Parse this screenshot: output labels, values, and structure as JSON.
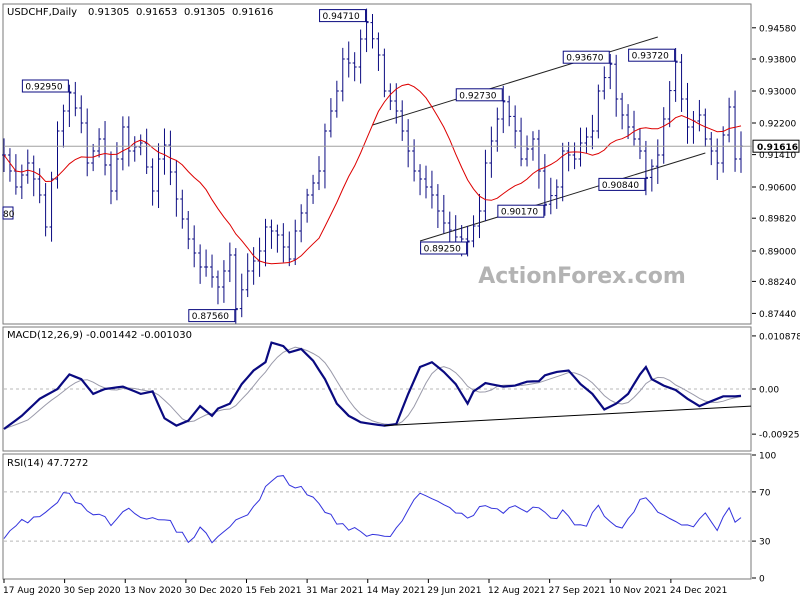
{
  "chart_data": [
    {
      "type": "bar",
      "style": "OHLC bars",
      "title": "USDCHF,Daily",
      "ohlc_header": [
        "0.91305",
        "0.91653",
        "0.91305",
        "0.91616"
      ],
      "last_price_label": "0.91616",
      "y_axis": {
        "ticks": [
          0.9458,
          0.938,
          0.93,
          0.922,
          0.9141,
          0.906,
          0.8982,
          0.89,
          0.8824,
          0.8744
        ],
        "tick_labels": [
          "0.94580",
          "0.93800",
          "0.93000",
          "0.92200",
          "0.91410",
          "0.90600",
          "0.89820",
          "0.89000",
          "0.88240",
          "0.87440"
        ],
        "range": [
          0.872,
          0.9515
        ]
      },
      "x_axis": {
        "tick_labels": [
          "17 Aug 2020",
          "30 Sep 2020",
          "13 Nov 2020",
          "30 Dec 2020",
          "15 Feb 2021",
          "31 Mar 2021",
          "14 May 2021",
          "29 Jun 2021",
          "12 Aug 2021",
          "27 Sep 2021",
          "10 Nov 2021",
          "24 Dec 2021"
        ]
      },
      "swing_labels": [
        {
          "text": "0.92950",
          "value": 0.9295,
          "date": "Aug 2020"
        },
        {
          "text": "0.94710",
          "value": 0.9471,
          "date": "Mar 2021"
        },
        {
          "text": "0.87560",
          "value": 0.8756,
          "date": "Jan 2021"
        },
        {
          "text": "0.92730",
          "value": 0.9273,
          "date": "Jun 2021"
        },
        {
          "text": "0.89250",
          "value": 0.8925,
          "date": "May 2021"
        },
        {
          "text": "0.90170",
          "value": 0.9017,
          "date": "Aug 2021"
        },
        {
          "text": "0.93670",
          "value": 0.9367,
          "date": "Sep 2021"
        },
        {
          "text": "0.90840",
          "value": 0.9084,
          "date": "Oct 2021"
        },
        {
          "text": "0.93720",
          "value": 0.9372,
          "date": "Nov 2021"
        }
      ],
      "cut_label": "80",
      "path_points": [
        [
          0,
          0.914
        ],
        [
          2,
          0.906
        ],
        [
          4,
          0.912
        ],
        [
          6,
          0.904
        ],
        [
          7,
          0.896
        ],
        [
          9,
          0.92
        ],
        [
          10,
          0.925
        ],
        [
          11,
          0.9295
        ],
        [
          13,
          0.922
        ],
        [
          14,
          0.912
        ],
        [
          16,
          0.918
        ],
        [
          18,
          0.905
        ],
        [
          20,
          0.921
        ],
        [
          21,
          0.915
        ],
        [
          23,
          0.917
        ],
        [
          25,
          0.905
        ],
        [
          26,
          0.913
        ],
        [
          27,
          0.9165
        ],
        [
          29,
          0.903
        ],
        [
          31,
          0.893
        ],
        [
          33,
          0.886
        ],
        [
          34,
          0.886
        ],
        [
          36,
          0.881
        ],
        [
          38,
          0.889
        ],
        [
          39,
          0.8756
        ],
        [
          41,
          0.885
        ],
        [
          43,
          0.89
        ],
        [
          44,
          0.896
        ],
        [
          46,
          0.894
        ],
        [
          48,
          0.888
        ],
        [
          49,
          0.895
        ],
        [
          51,
          0.904
        ],
        [
          53,
          0.91
        ],
        [
          54,
          0.92
        ],
        [
          56,
          0.93
        ],
        [
          57,
          0.938
        ],
        [
          59,
          0.936
        ],
        [
          60,
          0.943
        ],
        [
          61,
          0.9471
        ],
        [
          63,
          0.939
        ],
        [
          64,
          0.93
        ],
        [
          66,
          0.925
        ],
        [
          68,
          0.915
        ],
        [
          69,
          0.91
        ],
        [
          71,
          0.906
        ],
        [
          72,
          0.904
        ],
        [
          73,
          0.9
        ],
        [
          74,
          0.897
        ],
        [
          76,
          0.8935
        ],
        [
          78,
          0.8925
        ],
        [
          80,
          0.9
        ],
        [
          81,
          0.912
        ],
        [
          83,
          0.923
        ],
        [
          84,
          0.9273
        ],
        [
          86,
          0.92
        ],
        [
          87,
          0.913
        ],
        [
          89,
          0.918
        ],
        [
          90,
          0.91
        ],
        [
          91,
          0.9017
        ],
        [
          93,
          0.906
        ],
        [
          94,
          0.915
        ],
        [
          96,
          0.913
        ],
        [
          97,
          0.917
        ],
        [
          99,
          0.92
        ],
        [
          100,
          0.93
        ],
        [
          102,
          0.9367
        ],
        [
          103,
          0.928
        ],
        [
          104,
          0.924
        ],
        [
          106,
          0.918
        ],
        [
          107,
          0.915
        ],
        [
          108,
          0.9084
        ],
        [
          110,
          0.914
        ],
        [
          111,
          0.923
        ],
        [
          113,
          0.9372
        ],
        [
          114,
          0.928
        ],
        [
          115,
          0.921
        ],
        [
          117,
          0.924
        ],
        [
          118,
          0.918
        ],
        [
          119,
          0.915
        ],
        [
          120,
          0.912
        ],
        [
          122,
          0.926
        ],
        [
          123,
          0.913
        ],
        [
          124,
          0.9162
        ]
      ],
      "moving_average": {
        "color": "#dd0000"
      },
      "annotations": [
        "upward sloping channel",
        "horizontal line at last price"
      ]
    },
    {
      "type": "line",
      "title": "MACD(12,26,9) -0.001442 -0.001030",
      "series": [
        {
          "name": "MACD",
          "color": "#0a0a80"
        },
        {
          "name": "Signal",
          "color": "#9a9aaa"
        }
      ],
      "y_axis": {
        "tick_labels": [
          "0.010878",
          "0.00",
          "-0.00925"
        ],
        "ticks": [
          0.010878,
          0.0,
          -0.00925
        ],
        "range": [
          -0.0125,
          0.0125
        ]
      },
      "path_points": [
        [
          0,
          -0.0082
        ],
        [
          3,
          -0.0055
        ],
        [
          6,
          -0.002
        ],
        [
          9,
          0.0
        ],
        [
          11,
          0.003
        ],
        [
          13,
          0.002
        ],
        [
          15,
          -0.001
        ],
        [
          17,
          0.0
        ],
        [
          20,
          0.0005
        ],
        [
          23,
          -0.001
        ],
        [
          25,
          -0.0005
        ],
        [
          27,
          -0.006
        ],
        [
          29,
          -0.0075
        ],
        [
          31,
          -0.0065
        ],
        [
          33,
          -0.0035
        ],
        [
          35,
          -0.0055
        ],
        [
          36,
          -0.004
        ],
        [
          38,
          -0.003
        ],
        [
          40,
          0.001
        ],
        [
          42,
          0.0038
        ],
        [
          44,
          0.0055
        ],
        [
          45,
          0.0095
        ],
        [
          47,
          0.0088
        ],
        [
          48,
          0.0075
        ],
        [
          50,
          0.0082
        ],
        [
          52,
          0.0058
        ],
        [
          54,
          0.002
        ],
        [
          56,
          -0.003
        ],
        [
          58,
          -0.0055
        ],
        [
          60,
          -0.0068
        ],
        [
          62,
          -0.0072
        ],
        [
          64,
          -0.0075
        ],
        [
          66,
          -0.0072
        ],
        [
          68,
          -0.001
        ],
        [
          70,
          0.0045
        ],
        [
          72,
          0.0055
        ],
        [
          74,
          0.0035
        ],
        [
          76,
          0.001
        ],
        [
          78,
          -0.003
        ],
        [
          79,
          -0.0005
        ],
        [
          81,
          0.0012
        ],
        [
          84,
          0.0005
        ],
        [
          86,
          0.0007
        ],
        [
          88,
          0.0015
        ],
        [
          90,
          0.0016
        ],
        [
          91,
          0.0028
        ],
        [
          93,
          0.0035
        ],
        [
          95,
          0.0038
        ],
        [
          97,
          0.001
        ],
        [
          99,
          -0.001
        ],
        [
          101,
          -0.0042
        ],
        [
          103,
          -0.003
        ],
        [
          105,
          -0.001
        ],
        [
          107,
          0.003
        ],
        [
          108,
          0.0045
        ],
        [
          109,
          0.002
        ],
        [
          111,
          0.0007
        ],
        [
          113,
          -0.0002
        ],
        [
          115,
          -0.002
        ],
        [
          117,
          -0.0035
        ],
        [
          119,
          -0.0025
        ],
        [
          121,
          -0.0015
        ],
        [
          123,
          -0.0015
        ],
        [
          124,
          -0.0014
        ]
      ],
      "annotations": [
        "trendline along MACD lows"
      ]
    },
    {
      "type": "line",
      "title": "RSI(14) 47.7272",
      "y_axis": {
        "tick_labels": [
          "100",
          "70",
          "30",
          "0"
        ],
        "ticks": [
          100,
          70,
          30,
          0
        ],
        "range": [
          0,
          100
        ]
      },
      "levels": [
        70,
        30
      ],
      "path_points": [
        [
          0,
          32
        ],
        [
          3,
          45
        ],
        [
          6,
          48
        ],
        [
          9,
          64
        ],
        [
          11,
          70
        ],
        [
          13,
          58
        ],
        [
          16,
          50
        ],
        [
          18,
          45
        ],
        [
          20,
          55
        ],
        [
          23,
          52
        ],
        [
          25,
          47
        ],
        [
          27,
          48
        ],
        [
          29,
          40
        ],
        [
          31,
          31
        ],
        [
          33,
          39
        ],
        [
          35,
          30
        ],
        [
          36,
          36
        ],
        [
          38,
          40
        ],
        [
          40,
          50
        ],
        [
          42,
          58
        ],
        [
          44,
          74
        ],
        [
          45,
          78
        ],
        [
          47,
          82
        ],
        [
          48,
          76
        ],
        [
          50,
          72
        ],
        [
          52,
          64
        ],
        [
          54,
          56
        ],
        [
          56,
          46
        ],
        [
          58,
          40
        ],
        [
          60,
          36
        ],
        [
          62,
          35
        ],
        [
          64,
          32
        ],
        [
          66,
          38
        ],
        [
          68,
          55
        ],
        [
          70,
          68
        ],
        [
          72,
          62
        ],
        [
          74,
          60
        ],
        [
          76,
          55
        ],
        [
          78,
          46
        ],
        [
          80,
          58
        ],
        [
          82,
          56
        ],
        [
          84,
          53
        ],
        [
          86,
          61
        ],
        [
          88,
          54
        ],
        [
          90,
          56
        ],
        [
          92,
          48
        ],
        [
          94,
          53
        ],
        [
          96,
          46
        ],
        [
          98,
          43
        ],
        [
          100,
          60
        ],
        [
          102,
          44
        ],
        [
          104,
          40
        ],
        [
          106,
          56
        ],
        [
          108,
          66
        ],
        [
          110,
          52
        ],
        [
          112,
          48
        ],
        [
          114,
          46
        ],
        [
          116,
          44
        ],
        [
          118,
          50
        ],
        [
          120,
          41
        ],
        [
          122,
          60
        ],
        [
          123,
          44
        ],
        [
          124,
          47.7
        ]
      ]
    }
  ],
  "watermark": "ActionForex.com",
  "palette": {
    "bars": "#0a0a80",
    "moving_average": "#dd0000",
    "rsi": "#3333dd",
    "signal": "#9a9aaa",
    "grid": "#b8b8b8",
    "axis": "#000000"
  }
}
